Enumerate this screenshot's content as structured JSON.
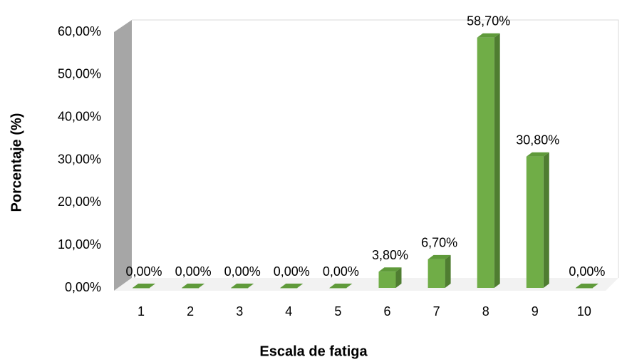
{
  "chart_data": {
    "type": "bar3d",
    "x_label": "Escala de fatiga",
    "y_label": "Porcentaje (%)",
    "categories": [
      "1",
      "2",
      "3",
      "4",
      "5",
      "6",
      "7",
      "8",
      "9",
      "10"
    ],
    "values": [
      0,
      0,
      0,
      0,
      0,
      3.8,
      6.7,
      58.7,
      30.8,
      0
    ],
    "value_labels": [
      "0,00%",
      "0,00%",
      "0,00%",
      "0,00%",
      "0,00%",
      "3,80%",
      "6,70%",
      "58,70%",
      "30,80%",
      "0,00%"
    ],
    "color": "#70ad47",
    "ylim": [
      0,
      60
    ],
    "yticks": [
      {
        "value": 0,
        "label": "0,00%"
      },
      {
        "value": 10,
        "label": "10,00%"
      },
      {
        "value": 20,
        "label": "20,00%"
      },
      {
        "value": 30,
        "label": "30,00%"
      },
      {
        "value": 40,
        "label": "40,00%"
      },
      {
        "value": 50,
        "label": "50,00%"
      },
      {
        "value": 60,
        "label": "60,00%"
      }
    ],
    "grid": false
  }
}
